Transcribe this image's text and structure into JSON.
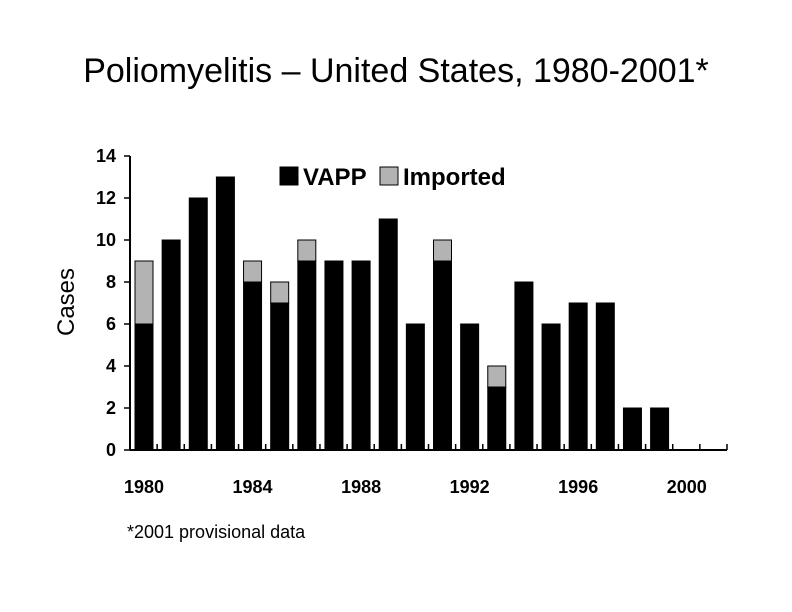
{
  "chart_data": {
    "type": "bar",
    "stacked": true,
    "title": "Poliomyelitis – United States, 1980-2001*",
    "xlabel": "",
    "ylabel": "Cases",
    "ylim": [
      0,
      14
    ],
    "yticks": [
      0,
      2,
      4,
      6,
      8,
      10,
      12,
      14
    ],
    "xtick_labels": [
      "1980",
      "1984",
      "1988",
      "1992",
      "1996",
      "2000"
    ],
    "categories": [
      1980,
      1981,
      1982,
      1983,
      1984,
      1985,
      1986,
      1987,
      1988,
      1989,
      1990,
      1991,
      1992,
      1993,
      1994,
      1995,
      1996,
      1997,
      1998,
      1999,
      2000,
      2001
    ],
    "series": [
      {
        "name": "VAPP",
        "color": "#000000",
        "values": [
          6,
          10,
          12,
          13,
          8,
          7,
          9,
          9,
          9,
          11,
          6,
          9,
          6,
          3,
          8,
          6,
          7,
          7,
          2,
          2,
          0,
          0
        ]
      },
      {
        "name": "Imported",
        "color": "#b3b3b3",
        "values": [
          3,
          0,
          0,
          0,
          1,
          1,
          1,
          0,
          0,
          0,
          0,
          1,
          0,
          1,
          0,
          0,
          0,
          0,
          0,
          0,
          0,
          0
        ]
      }
    ],
    "legend_position": "top-center",
    "footnote": "*2001 provisional data"
  }
}
